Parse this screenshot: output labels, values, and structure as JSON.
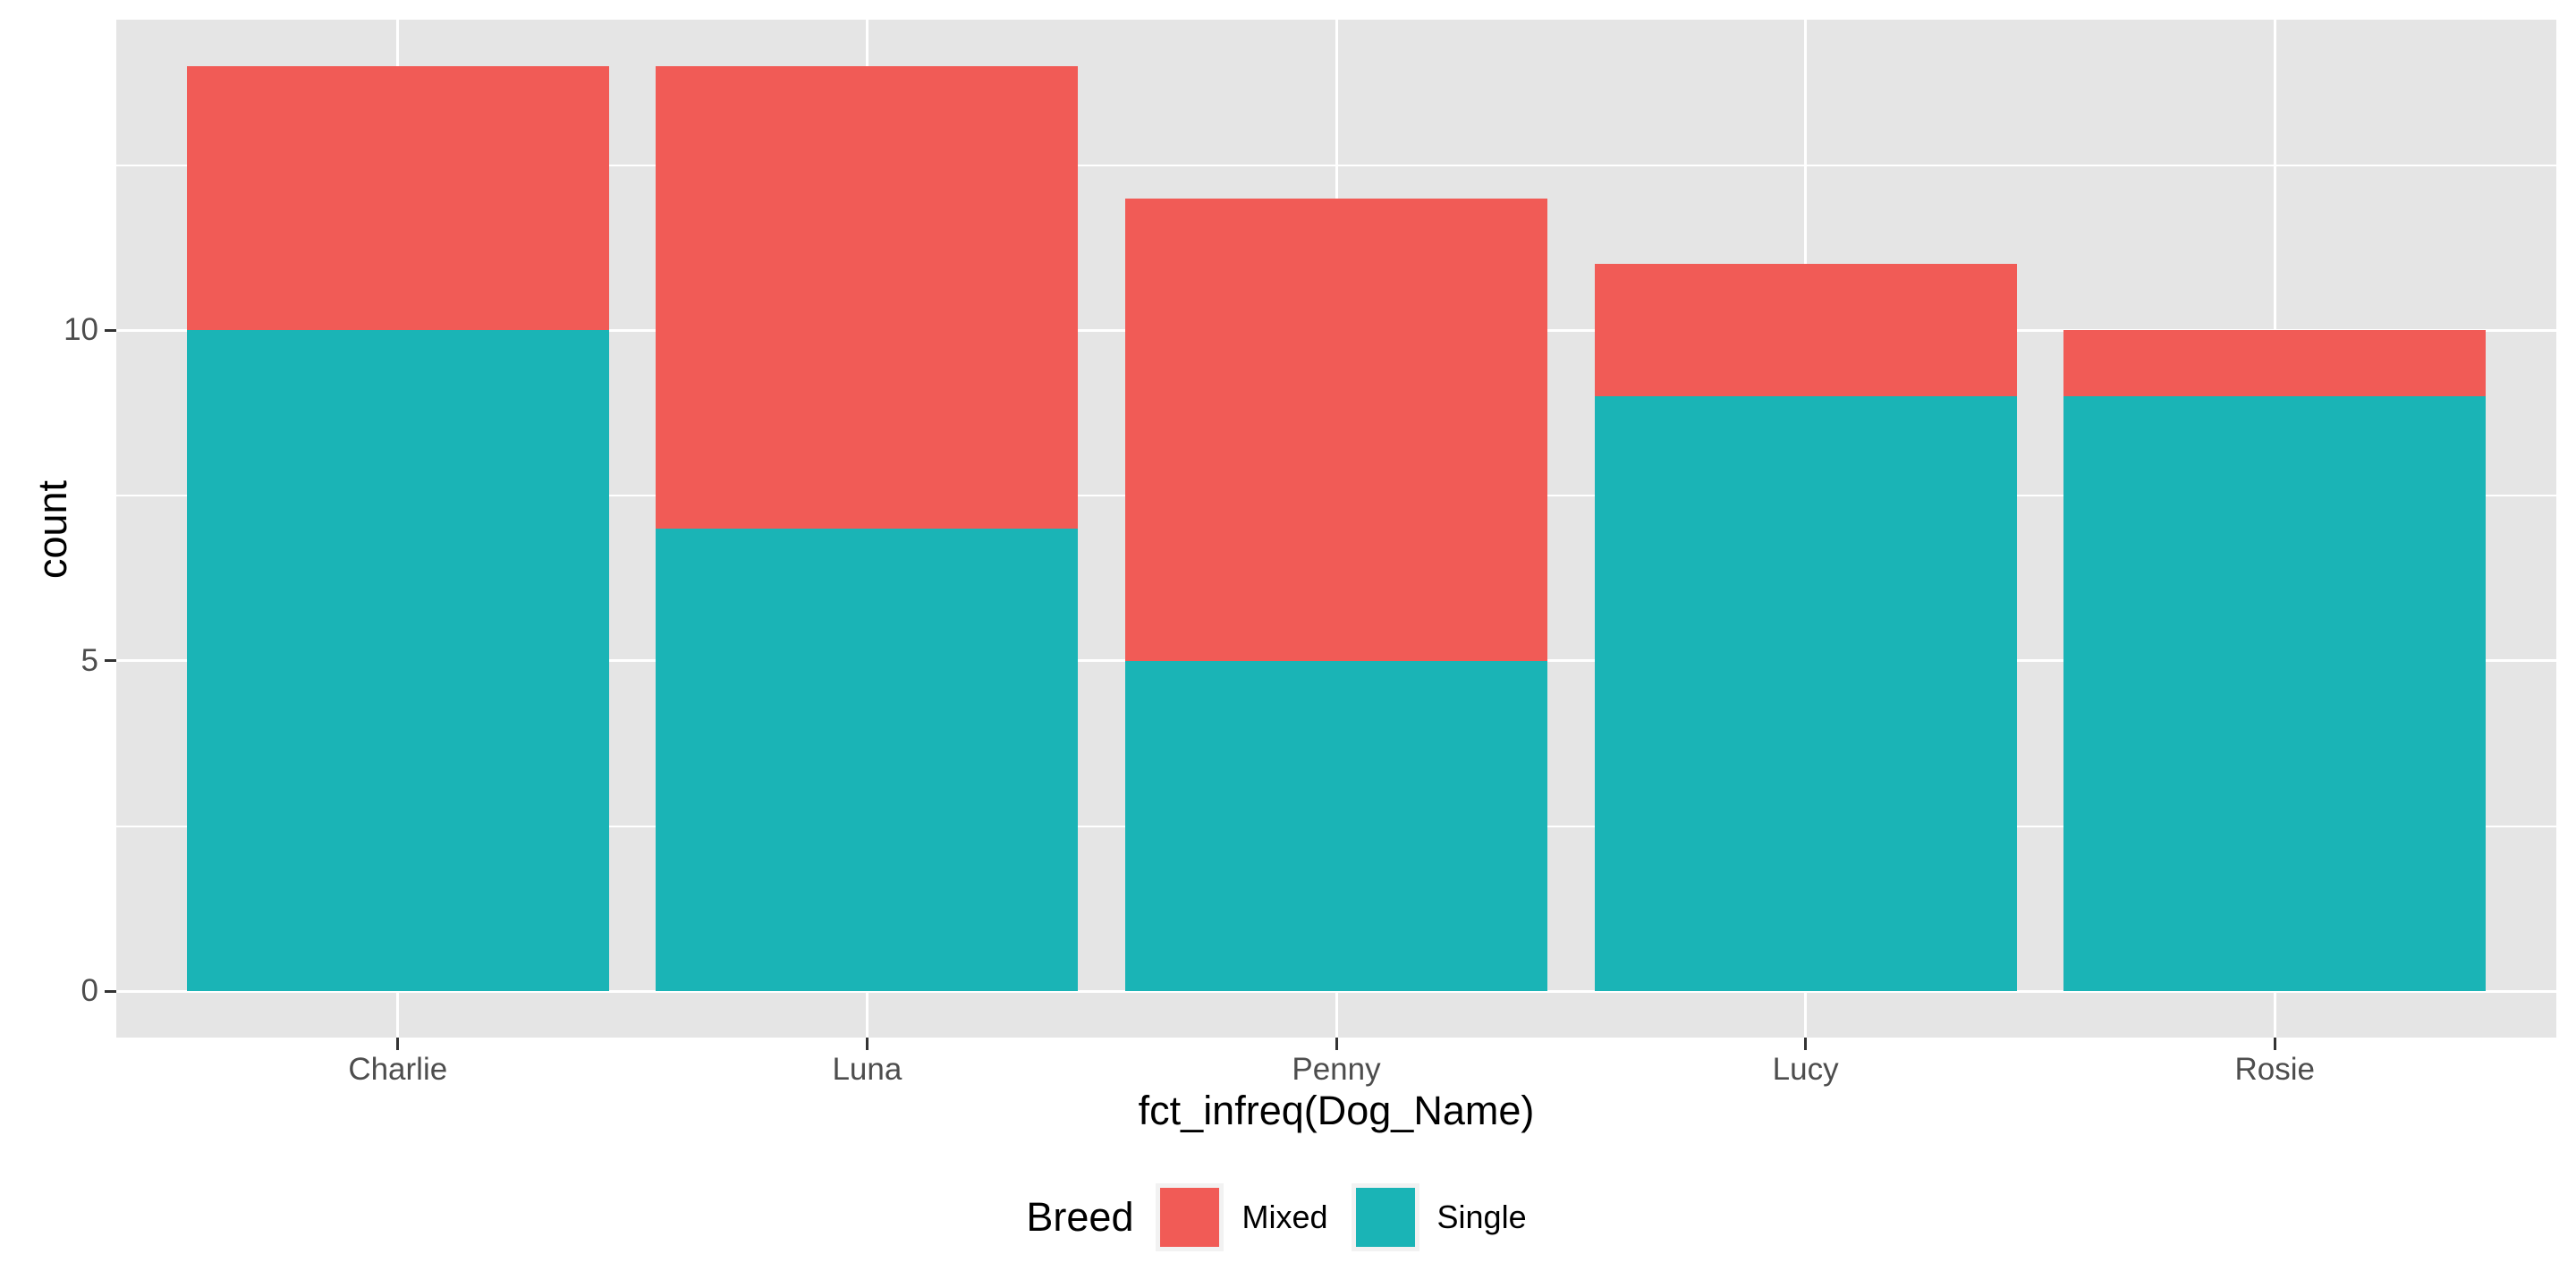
{
  "chart_data": {
    "type": "bar",
    "stacked": true,
    "categories": [
      "Charlie",
      "Luna",
      "Penny",
      "Lucy",
      "Rosie"
    ],
    "series": [
      {
        "name": "Single",
        "color": "#1AB4B6",
        "values": [
          10,
          7,
          5,
          9,
          9
        ]
      },
      {
        "name": "Mixed",
        "color": "#F15B56",
        "values": [
          4,
          7,
          7,
          2,
          1
        ]
      }
    ],
    "stack_order_bottom_to_top": [
      "Single",
      "Mixed"
    ],
    "totals": [
      14,
      14,
      12,
      11,
      10
    ],
    "xlabel": "fct_infreq(Dog_Name)",
    "ylabel": "count",
    "yticks": [
      0,
      5,
      10
    ],
    "yticks_minor": [
      2.5,
      7.5,
      12.5
    ],
    "ylim": [
      0,
      14
    ],
    "expansion_mult": 0.05,
    "bar_width_fraction": 0.9,
    "grid": true,
    "legend": {
      "title": "Breed",
      "position": "bottom",
      "entries": [
        {
          "label": "Mixed",
          "color": "#F15B56"
        },
        {
          "label": "Single",
          "color": "#1AB4B6"
        }
      ]
    },
    "colors": {
      "figure_background": "#FFFFFF",
      "panel_background": "#E5E5E5",
      "gridline": "#FFFFFF",
      "axis_text": "#4D4D4D",
      "tick_mark": "#333333",
      "title_text": "#000000",
      "legend_key_background": "#F2F2F2"
    }
  }
}
